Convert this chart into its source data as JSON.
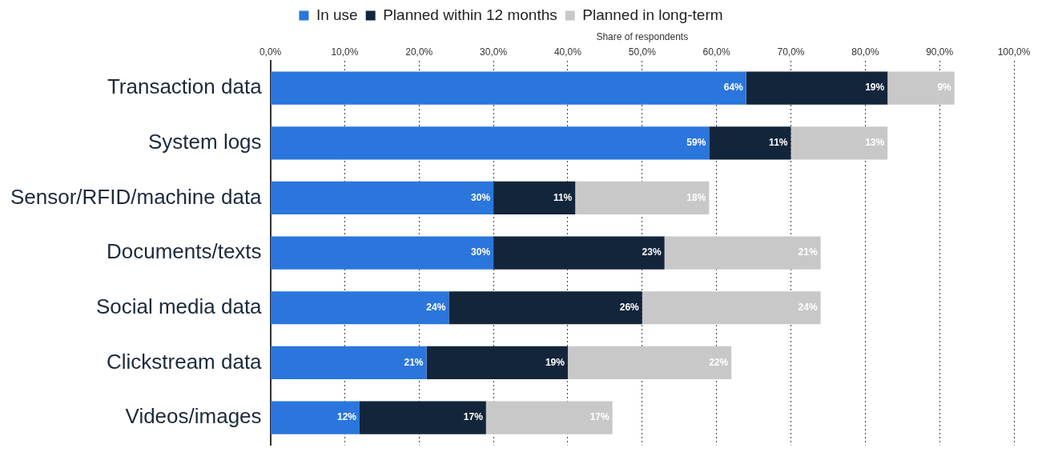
{
  "chart_data": {
    "type": "bar",
    "orientation": "horizontal",
    "stacked": true,
    "xlabel": "Share of respondents",
    "categories": [
      "Transaction data",
      "System logs",
      "Sensor/RFID/machine data",
      "Documents/texts",
      "Social media data",
      "Clickstream data",
      "Videos/images"
    ],
    "series": [
      {
        "name": "In use",
        "color": "#2a76dd",
        "values": [
          64,
          59,
          30,
          30,
          24,
          21,
          12
        ],
        "value_labels": [
          "64%",
          "59%",
          "30%",
          "30%",
          "24%",
          "21%",
          "12%"
        ]
      },
      {
        "name": "Planned within 12 months",
        "color": "#13253b",
        "values": [
          19,
          11,
          11,
          23,
          26,
          19,
          17
        ],
        "value_labels": [
          "19%",
          "11%",
          "11%",
          "23%",
          "26%",
          "19%",
          "17%"
        ]
      },
      {
        "name": "Planned in long-term",
        "color": "#c8c8c8",
        "values": [
          9,
          13,
          18,
          21,
          24,
          22,
          17
        ],
        "value_labels": [
          "9%",
          "13%",
          "18%",
          "21%",
          "24%",
          "22%",
          "17%"
        ]
      }
    ],
    "xlim": [
      0,
      100
    ],
    "xticks": [
      {
        "value": 0,
        "label": "0,0%"
      },
      {
        "value": 10,
        "label": "10,0%"
      },
      {
        "value": 20,
        "label": "20,0%"
      },
      {
        "value": 30,
        "label": "30,0%"
      },
      {
        "value": 40,
        "label": "40,0%"
      },
      {
        "value": 50,
        "label": "50,0%"
      },
      {
        "value": 60,
        "label": "60,0%"
      },
      {
        "value": 70,
        "label": "70,0%"
      },
      {
        "value": 80,
        "label": "80,0%"
      },
      {
        "value": 90,
        "label": "90,0%"
      },
      {
        "value": 100,
        "label": "100,0%"
      }
    ],
    "grid": "x",
    "legend": "top"
  }
}
